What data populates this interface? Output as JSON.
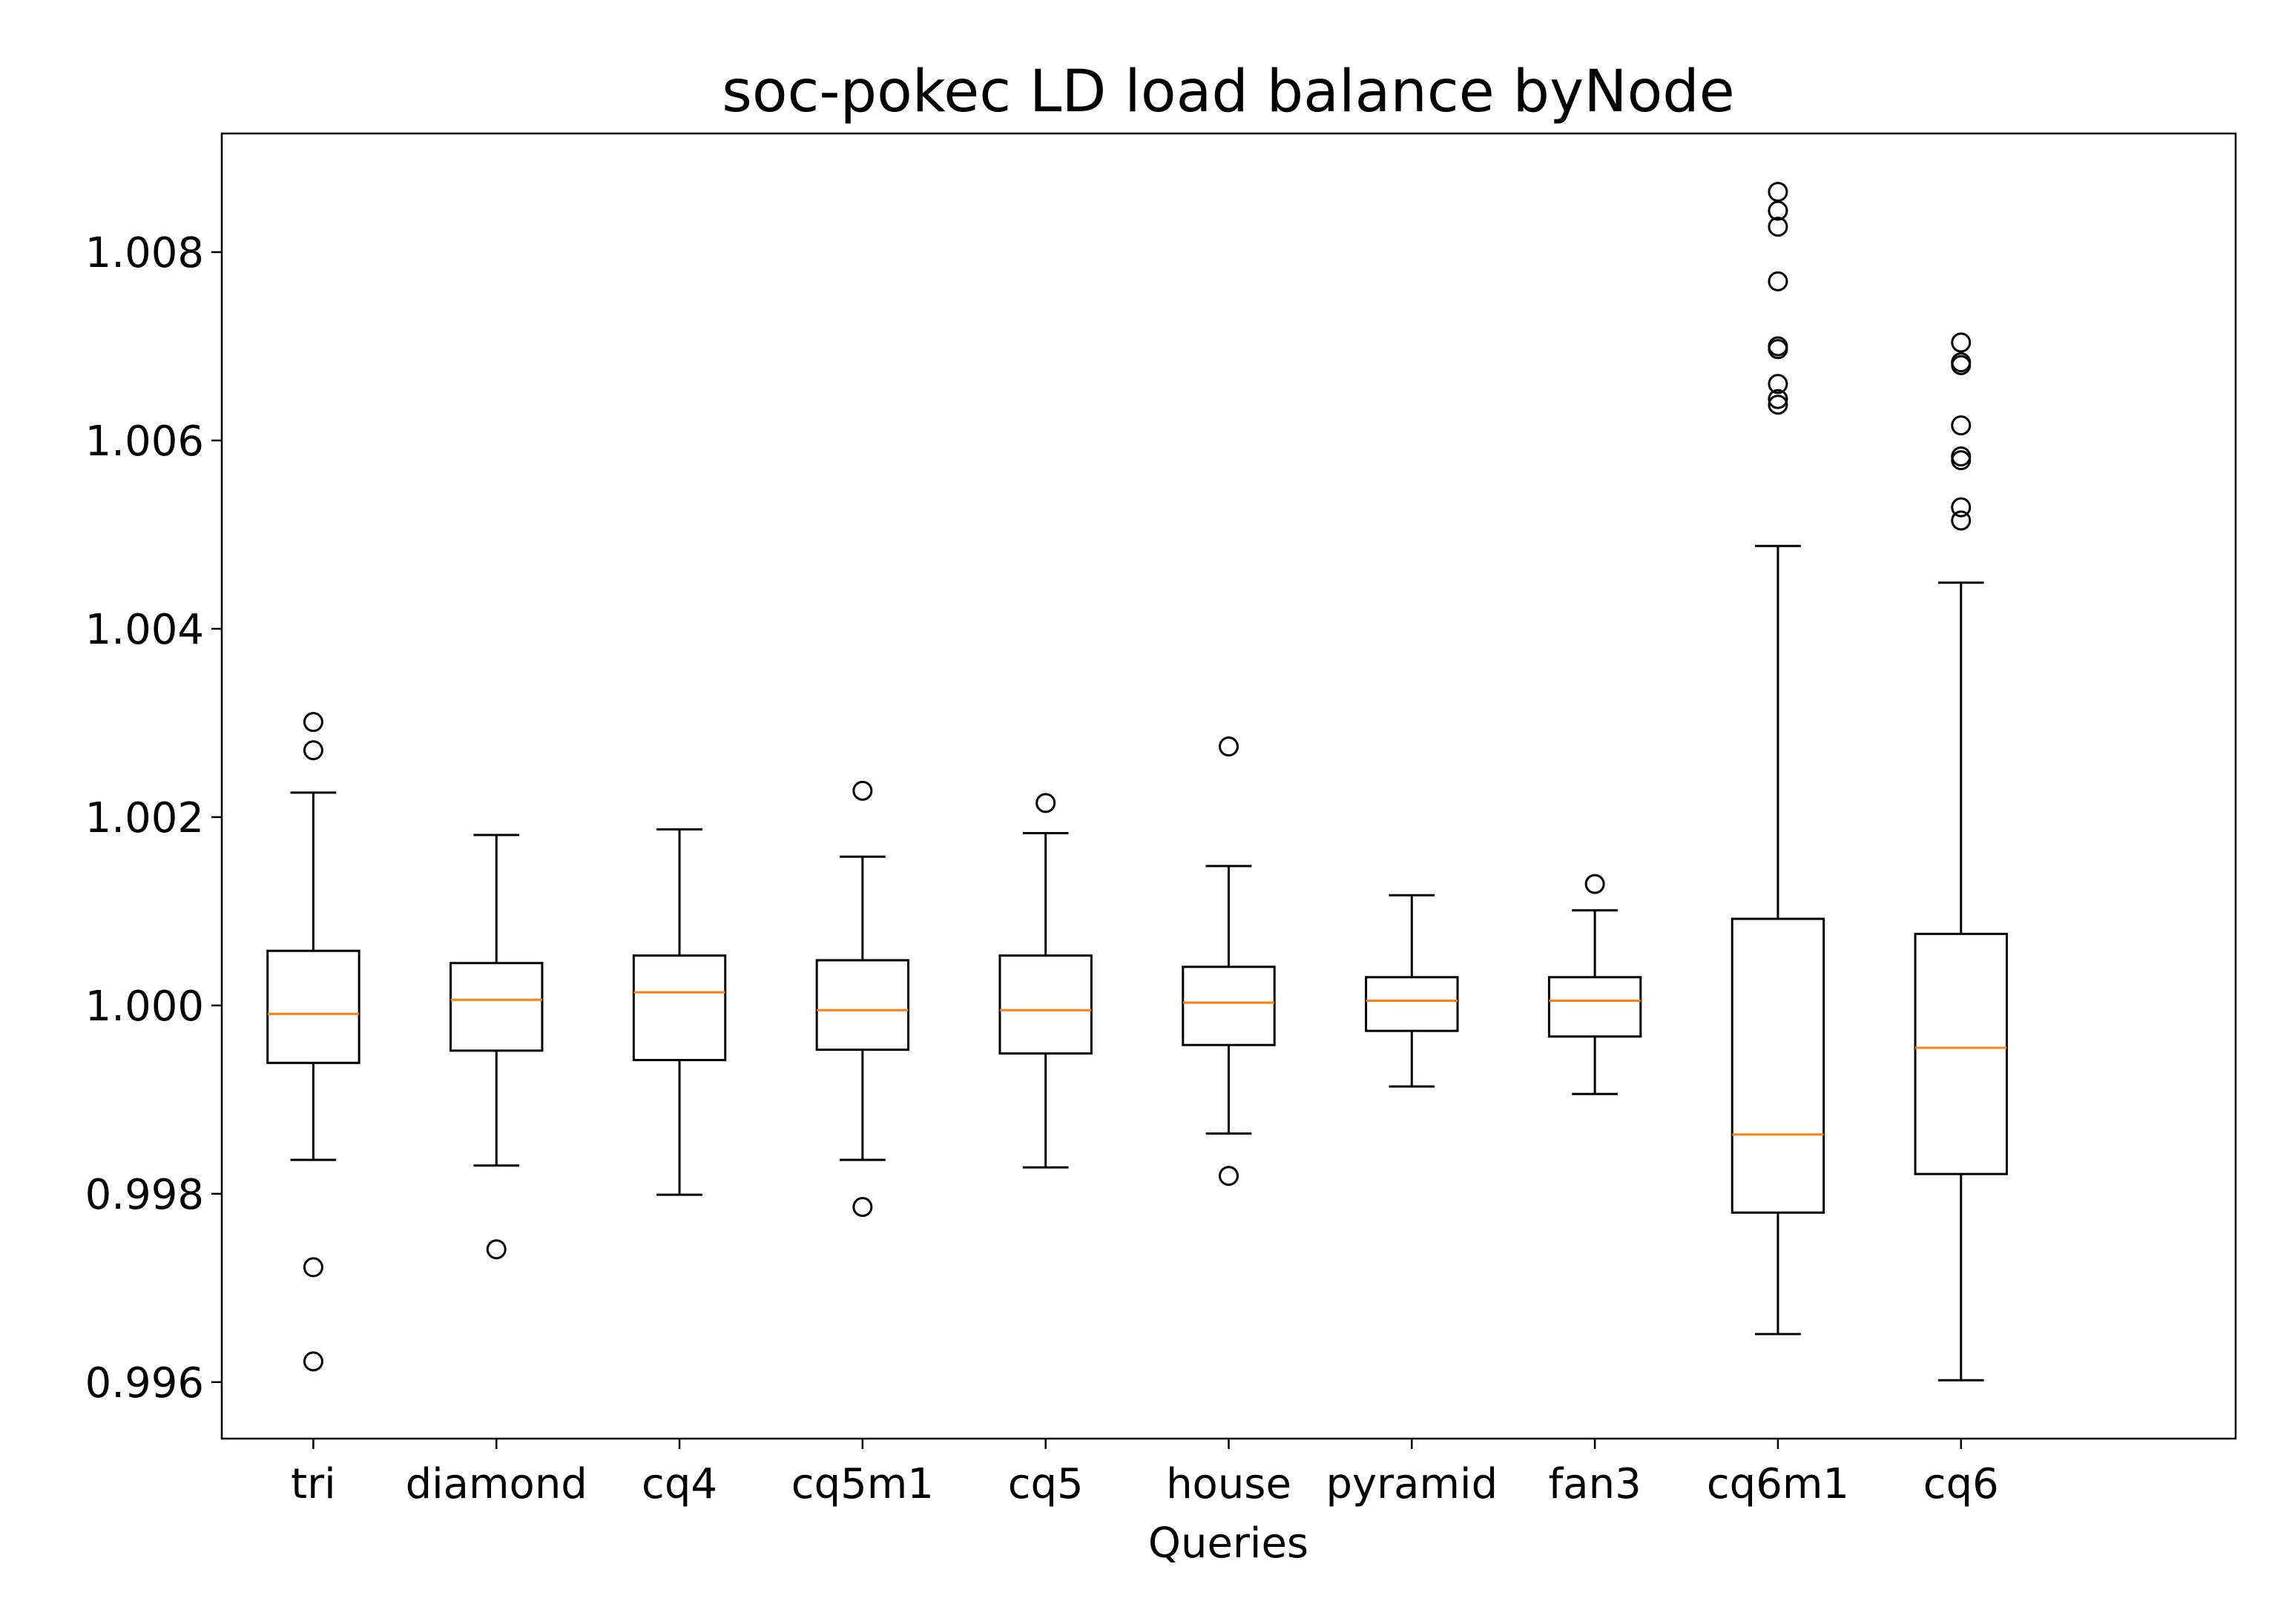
{
  "chart_data": {
    "type": "box",
    "title": "soc-pokec LD load balance byNode",
    "x_label": "Queries",
    "categories": [
      "tri",
      "diamond",
      "cq4",
      "cq5m1",
      "cq5",
      "house",
      "pyramid",
      "fan3",
      "cq6m1",
      "cq6"
    ],
    "boxes": [
      {
        "whislo": 0.99836,
        "q1": 0.99939,
        "med": 0.99991,
        "q3": 1.00058,
        "whishi": 1.00226,
        "fliers": [
          1.00301,
          1.00271,
          0.99722,
          0.99622
        ]
      },
      {
        "whislo": 0.9983,
        "q1": 0.99952,
        "med": 1.00006,
        "q3": 1.00045,
        "whishi": 1.00181,
        "fliers": [
          0.99741
        ]
      },
      {
        "whislo": 0.99799,
        "q1": 0.99942,
        "med": 1.00014,
        "q3": 1.00053,
        "whishi": 1.00187,
        "fliers": []
      },
      {
        "whislo": 0.99836,
        "q1": 0.99953,
        "med": 0.99995,
        "q3": 1.00048,
        "whishi": 1.00158,
        "fliers": [
          1.00228,
          0.99786
        ]
      },
      {
        "whislo": 0.99828,
        "q1": 0.99949,
        "med": 0.99995,
        "q3": 1.00053,
        "whishi": 1.00183,
        "fliers": [
          1.00215
        ]
      },
      {
        "whislo": 0.99864,
        "q1": 0.99958,
        "med": 1.00003,
        "q3": 1.00041,
        "whishi": 1.00148,
        "fliers": [
          1.00275,
          0.99819
        ]
      },
      {
        "whislo": 0.99914,
        "q1": 0.99973,
        "med": 1.00005,
        "q3": 1.0003,
        "whishi": 1.00117,
        "fliers": []
      },
      {
        "whislo": 0.99906,
        "q1": 0.99967,
        "med": 1.00005,
        "q3": 1.0003,
        "whishi": 1.00101,
        "fliers": [
          1.00129
        ]
      },
      {
        "whislo": 0.99651,
        "q1": 0.9978,
        "med": 0.99863,
        "q3": 1.00092,
        "whishi": 1.00488,
        "fliers": [
          1.00864,
          1.00844,
          1.00827,
          1.00769,
          1.007,
          1.00697,
          1.0066,
          1.00644,
          1.00638
        ]
      },
      {
        "whislo": 0.99602,
        "q1": 0.99821,
        "med": 0.99955,
        "q3": 1.00076,
        "whishi": 1.00449,
        "fliers": [
          1.00704,
          1.00683,
          1.0068,
          1.00616,
          1.00583,
          1.00579,
          1.00529,
          1.00515
        ]
      }
    ],
    "box_color": "#000000",
    "median_color": "#ff7f0e",
    "xlim": [
      0.5,
      11.5
    ],
    "ylim": [
      0.9954,
      1.00926
    ],
    "yticks": [
      0.996,
      0.998,
      {
        "value": 1,
        "label": "1.000"
      },
      1.002,
      1.004,
      1.006,
      1.008
    ]
  }
}
